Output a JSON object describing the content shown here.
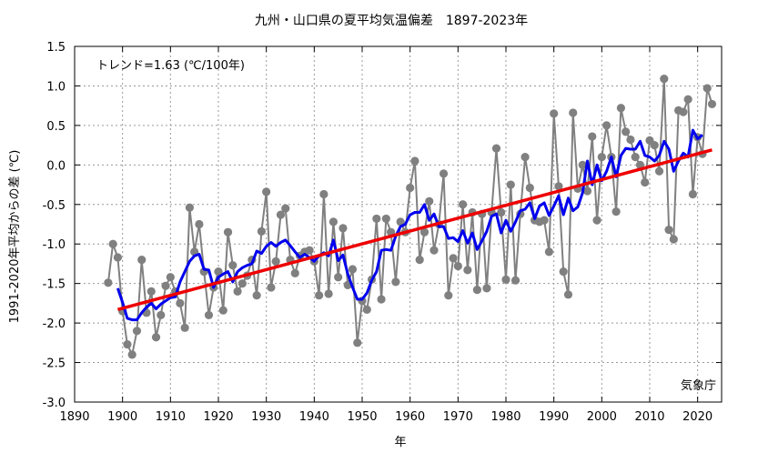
{
  "chart_data": {
    "type": "line",
    "title": "九州・山口県の夏平均気温偏差　1897-2023年",
    "xlabel": "年",
    "ylabel": "1991-2020年平均からの差 (℃)",
    "trend_label": "トレンド=1.63 (℃/100年)",
    "source_label": "気象庁",
    "xlim": [
      1890,
      2025
    ],
    "ylim": [
      -3.0,
      1.5
    ],
    "xticks": [
      "1890",
      "1900",
      "1910",
      "1920",
      "1930",
      "1940",
      "1950",
      "1960",
      "1970",
      "1980",
      "1990",
      "2000",
      "2010",
      "2020"
    ],
    "yticks": [
      "1.5",
      "1.0",
      "0.5",
      "0.0",
      "-0.5",
      "-1.0",
      "-1.5",
      "-2.0",
      "-2.5",
      "-3.0"
    ],
    "grid": true,
    "colors": {
      "annual": "#808080",
      "moving_average": "#0000ee",
      "trend": "#ee0000"
    },
    "series": [
      {
        "style": "annual-markers",
        "x": [
          1897,
          1898,
          1899,
          1900,
          1901,
          1902,
          1903,
          1904,
          1905,
          1906,
          1907,
          1908,
          1909,
          1910,
          1911,
          1912,
          1913,
          1914,
          1915,
          1916,
          1917,
          1918,
          1919,
          1920,
          1921,
          1922,
          1923,
          1924,
          1925,
          1926,
          1927,
          1928,
          1929,
          1930,
          1931,
          1932,
          1933,
          1934,
          1935,
          1936,
          1937,
          1938,
          1939,
          1940,
          1941,
          1942,
          1943,
          1944,
          1945,
          1946,
          1947,
          1948,
          1949,
          1950,
          1951,
          1952,
          1953,
          1954,
          1955,
          1956,
          1957,
          1958,
          1959,
          1960,
          1961,
          1962,
          1963,
          1964,
          1965,
          1966,
          1967,
          1968,
          1969,
          1970,
          1971,
          1972,
          1973,
          1974,
          1975,
          1976,
          1977,
          1978,
          1979,
          1980,
          1981,
          1982,
          1983,
          1984,
          1985,
          1986,
          1987,
          1988,
          1989,
          1990,
          1991,
          1992,
          1993,
          1994,
          1995,
          1996,
          1997,
          1998,
          1999,
          2000,
          2001,
          2002,
          2003,
          2004,
          2005,
          2006,
          2007,
          2008,
          2009,
          2010,
          2011,
          2012,
          2013,
          2014,
          2015,
          2016,
          2017,
          2018,
          2019,
          2020,
          2021,
          2022,
          2023
        ],
        "y": [
          -1.49,
          -1.0,
          -1.17,
          -1.85,
          -2.27,
          -2.4,
          -2.1,
          -1.2,
          -1.87,
          -1.6,
          -2.18,
          -1.9,
          -1.53,
          -1.42,
          -1.6,
          -1.75,
          -2.06,
          -0.54,
          -1.1,
          -0.75,
          -1.35,
          -1.9,
          -1.55,
          -1.35,
          -1.84,
          -0.85,
          -1.27,
          -1.6,
          -1.5,
          -1.4,
          -1.2,
          -1.65,
          -0.84,
          -0.34,
          -1.55,
          -1.22,
          -0.63,
          -0.55,
          -1.2,
          -1.37,
          -1.15,
          -1.1,
          -1.08,
          -1.22,
          -1.65,
          -0.37,
          -1.63,
          -0.72,
          -1.42,
          -0.8,
          -1.52,
          -1.32,
          -2.25,
          -1.72,
          -1.83,
          -1.45,
          -0.68,
          -1.7,
          -0.68,
          -0.85,
          -1.48,
          -0.72,
          -0.85,
          -0.29,
          0.05,
          -1.2,
          -0.85,
          -0.46,
          -1.08,
          -0.75,
          -0.11,
          -1.65,
          -1.18,
          -1.28,
          -0.5,
          -1.33,
          -0.6,
          -1.58,
          -0.62,
          -1.56,
          -0.6,
          0.21,
          -0.6,
          -1.45,
          -0.25,
          -1.46,
          -0.62,
          0.1,
          -0.29,
          -0.7,
          -0.72,
          -0.7,
          -1.1,
          0.65,
          -0.27,
          -1.35,
          -1.64,
          0.66,
          -0.3,
          0.0,
          -0.33,
          0.36,
          -0.7,
          0.1,
          0.5,
          0.1,
          -0.59,
          0.72,
          0.42,
          0.32,
          0.1,
          0.0,
          -0.22,
          0.31,
          0.25,
          -0.08,
          1.09,
          -0.82,
          -0.94,
          0.69,
          0.67,
          0.83,
          -0.37,
          0.35,
          0.14,
          0.97,
          0.77
        ]
      },
      {
        "style": "5-year-moving-average",
        "x": [
          1899,
          1900,
          1901,
          1902,
          1903,
          1904,
          1905,
          1906,
          1907,
          1908,
          1909,
          1910,
          1911,
          1912,
          1913,
          1914,
          1915,
          1916,
          1917,
          1918,
          1919,
          1920,
          1921,
          1922,
          1923,
          1924,
          1925,
          1926,
          1927,
          1928,
          1929,
          1930,
          1931,
          1932,
          1933,
          1934,
          1935,
          1936,
          1937,
          1938,
          1939,
          1940,
          1941,
          1942,
          1943,
          1944,
          1945,
          1946,
          1947,
          1948,
          1949,
          1950,
          1951,
          1952,
          1953,
          1954,
          1955,
          1956,
          1957,
          1958,
          1959,
          1960,
          1961,
          1962,
          1963,
          1964,
          1965,
          1966,
          1967,
          1968,
          1969,
          1970,
          1971,
          1972,
          1973,
          1974,
          1975,
          1976,
          1977,
          1978,
          1979,
          1980,
          1981,
          1982,
          1983,
          1984,
          1985,
          1986,
          1987,
          1988,
          1989,
          1990,
          1991,
          1992,
          1993,
          1994,
          1995,
          1996,
          1997,
          1998,
          1999,
          2000,
          2001,
          2002,
          2003,
          2004,
          2005,
          2006,
          2007,
          2008,
          2009,
          2010,
          2011,
          2012,
          2013,
          2014,
          2015,
          2016,
          2017,
          2018,
          2019,
          2020,
          2021
        ],
        "y": [
          -1.56,
          -1.74,
          -1.94,
          -1.96,
          -1.96,
          -1.87,
          -1.8,
          -1.75,
          -1.82,
          -1.76,
          -1.72,
          -1.68,
          -1.67,
          -1.48,
          -1.35,
          -1.22,
          -1.15,
          -1.13,
          -1.32,
          -1.33,
          -1.55,
          -1.42,
          -1.38,
          -1.35,
          -1.48,
          -1.35,
          -1.3,
          -1.27,
          -1.25,
          -1.09,
          -1.12,
          -1.03,
          -0.98,
          -1.03,
          -0.98,
          -0.95,
          -1.02,
          -1.1,
          -1.17,
          -1.13,
          -1.17,
          -1.22,
          -1.15,
          -1.11,
          -1.15,
          -0.95,
          -1.21,
          -1.14,
          -1.38,
          -1.55,
          -1.7,
          -1.7,
          -1.62,
          -1.46,
          -1.35,
          -1.08,
          -1.07,
          -1.08,
          -0.9,
          -0.78,
          -0.75,
          -0.63,
          -0.6,
          -0.6,
          -0.5,
          -0.7,
          -0.62,
          -0.78,
          -0.78,
          -0.93,
          -0.92,
          -0.97,
          -0.83,
          -0.99,
          -0.86,
          -1.07,
          -0.96,
          -0.84,
          -0.65,
          -0.62,
          -0.86,
          -0.7,
          -0.84,
          -0.72,
          -0.58,
          -0.56,
          -0.48,
          -0.68,
          -0.52,
          -0.48,
          -0.64,
          -0.52,
          -0.39,
          -0.63,
          -0.42,
          -0.58,
          -0.53,
          -0.35,
          0.05,
          -0.25,
          0.0,
          -0.2,
          -0.08,
          0.1,
          -0.15,
          0.12,
          0.21,
          0.2,
          0.2,
          0.3,
          0.12,
          0.1,
          0.05,
          0.12,
          0.3,
          0.2,
          -0.08,
          0.05,
          0.15,
          0.1,
          0.44,
          0.33,
          0.38
        ]
      },
      {
        "style": "trend",
        "x": [
          1899,
          2023
        ],
        "y": [
          -1.83,
          0.19
        ]
      }
    ]
  }
}
